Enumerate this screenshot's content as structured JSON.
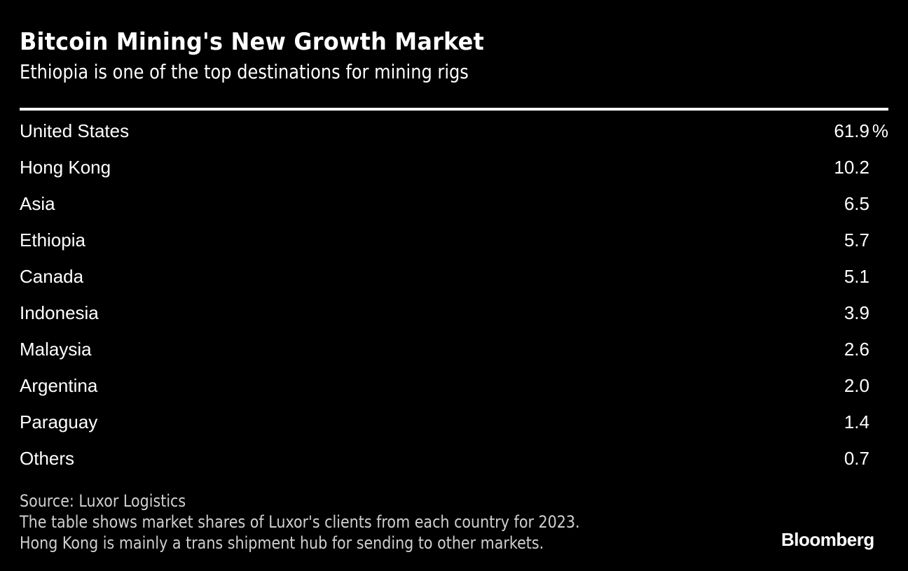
{
  "chart_data": {
    "type": "table",
    "title": "Bitcoin Mining's New Growth Market",
    "subtitle": "Ethiopia is one of the top destinations for mining rigs",
    "unit": "%",
    "rows": [
      {
        "label": "United States",
        "value": "61.9"
      },
      {
        "label": "Hong Kong",
        "value": "10.2"
      },
      {
        "label": "Asia",
        "value": "6.5"
      },
      {
        "label": "Ethiopia",
        "value": "5.7"
      },
      {
        "label": "Canada",
        "value": "5.1"
      },
      {
        "label": "Indonesia",
        "value": "3.9"
      },
      {
        "label": "Malaysia",
        "value": "2.6"
      },
      {
        "label": "Argentina",
        "value": "2.0"
      },
      {
        "label": "Paraguay",
        "value": "1.4"
      },
      {
        "label": "Others",
        "value": "0.7"
      }
    ],
    "source": "Source: Luxor Logistics",
    "notes": [
      "The table shows market shares of Luxor's clients from each country for 2023.",
      "Hong Kong is mainly a trans shipment hub for sending to other markets."
    ]
  },
  "branding": {
    "logo": "Bloomberg"
  },
  "colors": {
    "background": "#000000",
    "text": "#ffffff",
    "footnote": "#d0d0d0"
  }
}
